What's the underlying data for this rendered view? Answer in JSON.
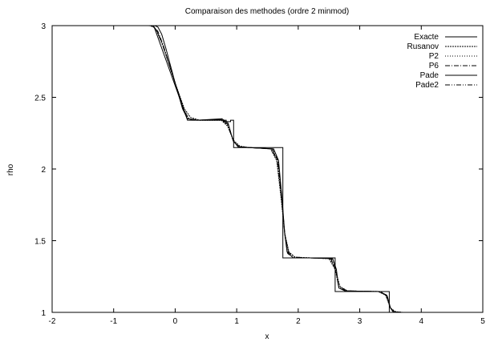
{
  "chart_data": {
    "type": "line",
    "title": "Comparaison des methodes (ordre 2 minmod)",
    "xlabel": "x",
    "ylabel": "rho",
    "xlim": [
      -2,
      5
    ],
    "ylim": [
      1,
      3
    ],
    "xticks": [
      "-2",
      "-1",
      "0",
      "1",
      "2",
      "3",
      "4",
      "5"
    ],
    "yticks": [
      "1",
      "1.5",
      "2",
      "2.5",
      "3"
    ],
    "grid": false,
    "legend_position": "top-right",
    "series": [
      {
        "name": "Exacte",
        "dash": "solid",
        "x": [
          -2,
          -0.35,
          0.2,
          0.2,
          0.75,
          0.78,
          0.78,
          0.8,
          0.8,
          0.83,
          0.83,
          0.9,
          0.9,
          0.95,
          0.95,
          1.75,
          1.75,
          2.6,
          2.6,
          3.48,
          3.48,
          5
        ],
        "y": [
          3,
          3,
          2.34,
          2.34,
          2.34,
          2.34,
          2.33,
          2.33,
          2.34,
          2.34,
          2.33,
          2.33,
          2.34,
          2.34,
          2.15,
          2.15,
          1.38,
          1.38,
          1.145,
          1.145,
          1.0,
          1.0
        ]
      },
      {
        "name": "Rusanov",
        "dash": "dotted-dense",
        "x": [
          -2,
          -0.42,
          -0.35,
          -0.3,
          -0.2,
          0.0,
          0.15,
          0.25,
          0.4,
          0.75,
          0.85,
          0.95,
          1.05,
          1.2,
          1.55,
          1.65,
          1.72,
          1.78,
          1.85,
          1.95,
          2.2,
          2.5,
          2.6,
          2.68,
          2.8,
          3.3,
          3.42,
          3.5,
          3.58,
          3.7,
          5
        ],
        "y": [
          3,
          3,
          2.99,
          2.96,
          2.86,
          2.6,
          2.42,
          2.36,
          2.34,
          2.34,
          2.3,
          2.2,
          2.16,
          2.15,
          2.14,
          2.06,
          1.8,
          1.55,
          1.42,
          1.385,
          1.38,
          1.375,
          1.3,
          1.18,
          1.15,
          1.145,
          1.12,
          1.03,
          1.005,
          1.0,
          1.0
        ]
      },
      {
        "name": "P2",
        "dash": "dotted-sparse",
        "x": [
          -2,
          -0.43,
          -0.36,
          -0.3,
          -0.2,
          0.0,
          0.15,
          0.23,
          0.4,
          0.75,
          0.85,
          0.95,
          1.05,
          1.2,
          1.56,
          1.66,
          1.73,
          1.78,
          1.84,
          1.95,
          2.2,
          2.52,
          2.6,
          2.66,
          2.8,
          3.3,
          3.43,
          3.5,
          3.56,
          3.7,
          5
        ],
        "y": [
          3,
          3,
          2.995,
          2.97,
          2.87,
          2.6,
          2.41,
          2.35,
          2.34,
          2.34,
          2.31,
          2.19,
          2.155,
          2.15,
          2.14,
          2.06,
          1.8,
          1.56,
          1.42,
          1.385,
          1.38,
          1.375,
          1.3,
          1.18,
          1.15,
          1.145,
          1.12,
          1.03,
          1.005,
          1.0,
          1.0
        ]
      },
      {
        "name": "P6",
        "dash": "dash-dot",
        "x": [
          -2,
          -0.4,
          -0.34,
          -0.28,
          -0.2,
          0.0,
          0.15,
          0.22,
          0.4,
          0.76,
          0.86,
          0.95,
          1.04,
          1.2,
          1.58,
          1.67,
          1.73,
          1.78,
          1.83,
          1.93,
          2.2,
          2.54,
          2.61,
          2.66,
          2.78,
          3.32,
          3.44,
          3.5,
          3.55,
          3.65,
          5
        ],
        "y": [
          3,
          3,
          2.99,
          2.96,
          2.87,
          2.6,
          2.4,
          2.35,
          2.34,
          2.345,
          2.31,
          2.19,
          2.155,
          2.15,
          2.14,
          2.06,
          1.8,
          1.55,
          1.41,
          1.38,
          1.38,
          1.375,
          1.3,
          1.17,
          1.15,
          1.145,
          1.12,
          1.03,
          1.005,
          1.0,
          1.0
        ]
      },
      {
        "name": "Pade",
        "dash": "solid",
        "x": [
          -2,
          -0.33,
          -0.28,
          -0.22,
          -0.15,
          0.0,
          0.12,
          0.2,
          0.35,
          0.76,
          0.86,
          0.94,
          1.02,
          1.2,
          1.6,
          1.68,
          1.74,
          1.78,
          1.82,
          1.92,
          2.2,
          2.56,
          2.62,
          2.66,
          2.76,
          3.34,
          3.45,
          3.5,
          3.54,
          3.62,
          5
        ],
        "y": [
          3,
          3,
          2.99,
          2.94,
          2.84,
          2.6,
          2.42,
          2.35,
          2.34,
          2.35,
          2.32,
          2.2,
          2.155,
          2.15,
          2.14,
          2.06,
          1.78,
          1.55,
          1.42,
          1.38,
          1.38,
          1.375,
          1.3,
          1.17,
          1.15,
          1.145,
          1.11,
          1.03,
          1.005,
          1.0,
          1.0
        ]
      },
      {
        "name": "Pade2",
        "dash": "dash-dot-dot",
        "x": [
          -2,
          -0.41,
          -0.35,
          -0.29,
          -0.2,
          0.0,
          0.14,
          0.22,
          0.38,
          0.76,
          0.85,
          0.95,
          1.04,
          1.2,
          1.57,
          1.66,
          1.73,
          1.78,
          1.84,
          1.94,
          2.2,
          2.53,
          2.6,
          2.66,
          2.79,
          3.31,
          3.43,
          3.5,
          3.56,
          3.68,
          5
        ],
        "y": [
          3,
          3,
          2.992,
          2.96,
          2.86,
          2.6,
          2.41,
          2.35,
          2.34,
          2.345,
          2.31,
          2.19,
          2.155,
          2.15,
          2.14,
          2.06,
          1.8,
          1.55,
          1.42,
          1.385,
          1.38,
          1.375,
          1.3,
          1.18,
          1.15,
          1.145,
          1.12,
          1.03,
          1.005,
          1.0,
          1.0
        ]
      }
    ]
  }
}
